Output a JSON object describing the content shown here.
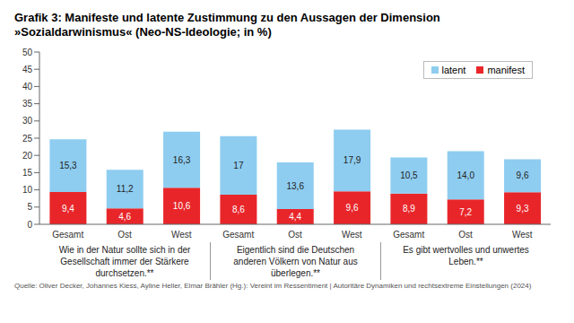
{
  "chart_data": {
    "type": "bar",
    "title": "Grafik 3: Manifeste und latente Zustimmung zu den Aussagen der Dimension »Sozialdarwinismus« (Neo-NS-Ideologie; in %)",
    "source": "Quelle: Oliver Decker, Johannes Kiess, Ayline Heller, Elmar Brähler (Hg.): Vereint im Ressentiment | Autoritäre Dynamiken und rechtsextreme Einstellungen (2024)",
    "categories": [
      "Gesamt",
      "Ost",
      "West",
      "Gesamt",
      "Ost",
      "West",
      "Gesamt",
      "Ost",
      "West"
    ],
    "group_labels": [
      "Wie in der Natur sollte sich in der Gesellschaft immer der Stärkere durchsetzen.**",
      "Eigentlich sind die Deutschen anderen Völkern von Natur aus überlegen.**",
      "Es gibt wertvolles und unwertes Leben.**"
    ],
    "series": [
      {
        "name": "latent",
        "color": "#8ecdf0",
        "values": [
          15.3,
          11.2,
          16.3,
          17,
          13.6,
          17.9,
          10.5,
          14.0,
          9.6
        ],
        "value_labels": [
          "15,3",
          "11,2",
          "16,3",
          "17",
          "13,6",
          "17,9",
          "10,5",
          "14,0",
          "9,6"
        ]
      },
      {
        "name": "manifest",
        "color": "#e8262a",
        "values": [
          9.4,
          4.6,
          10.6,
          8.6,
          4.4,
          9.6,
          8.9,
          7.2,
          9.3
        ],
        "value_labels": [
          "9,4",
          "4,6",
          "10,6",
          "8,6",
          "4,4",
          "9,6",
          "8,9",
          "7,2",
          "9,3"
        ]
      }
    ],
    "stacked": true,
    "data_labels": true,
    "legend": "upper right",
    "grid": false,
    "ylim": [
      0,
      50
    ],
    "yticks": [
      0,
      5,
      10,
      15,
      20,
      25,
      30,
      35,
      40,
      45,
      50
    ]
  }
}
